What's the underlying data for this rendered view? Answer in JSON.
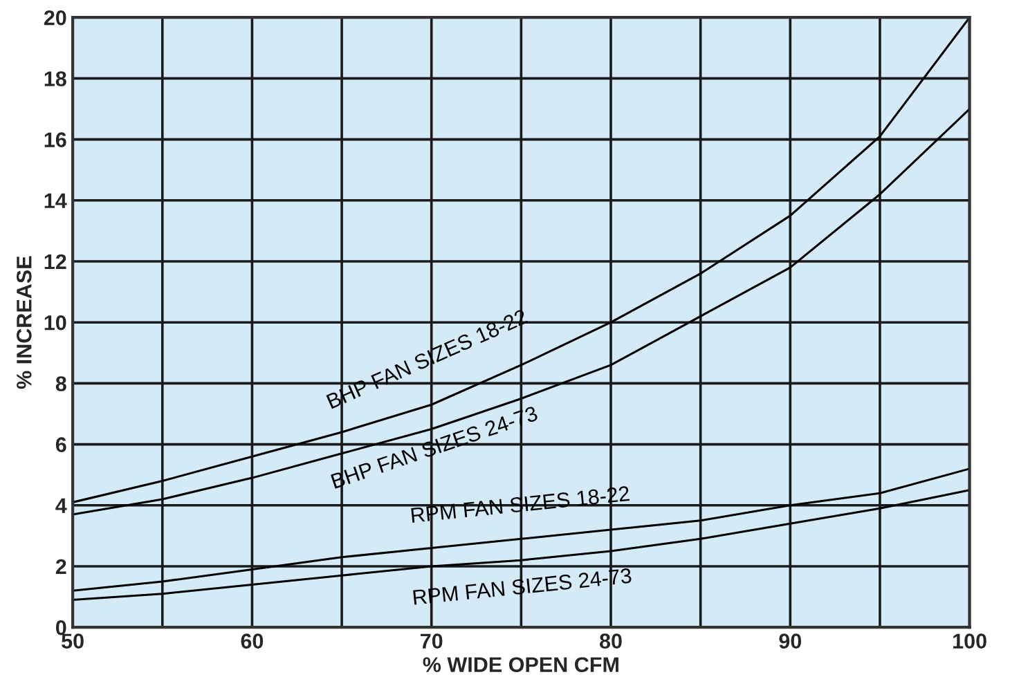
{
  "chart_data": {
    "type": "line",
    "xlabel": "% WIDE OPEN CFM",
    "ylabel": "% INCREASE",
    "x": [
      50,
      55,
      60,
      65,
      70,
      75,
      80,
      85,
      90,
      95,
      100
    ],
    "series": [
      {
        "name": "BHP FAN SIZES 18-22",
        "color": "#000000",
        "values": [
          4.1,
          4.8,
          5.6,
          6.4,
          7.3,
          8.6,
          10.0,
          11.6,
          13.5,
          16.1,
          20.0
        ]
      },
      {
        "name": "BHP FAN SIZES 24-73",
        "color": "#000000",
        "values": [
          3.7,
          4.2,
          4.9,
          5.7,
          6.5,
          7.5,
          8.6,
          10.2,
          11.8,
          14.2,
          17.0
        ]
      },
      {
        "name": "RPM FAN SIZES 18-22",
        "color": "#000000",
        "values": [
          1.2,
          1.5,
          1.9,
          2.3,
          2.6,
          2.9,
          3.2,
          3.5,
          4.0,
          4.4,
          5.2
        ]
      },
      {
        "name": "RPM FAN SIZES 24-73",
        "color": "#000000",
        "values": [
          0.9,
          1.1,
          1.4,
          1.7,
          2.0,
          2.2,
          2.5,
          2.9,
          3.4,
          3.9,
          4.5
        ]
      }
    ],
    "xlim": [
      50,
      100
    ],
    "ylim": [
      0,
      20
    ],
    "xticks": [
      {
        "value": 50,
        "label": "50"
      },
      {
        "value": 55,
        "label": null
      },
      {
        "value": 60,
        "label": "60"
      },
      {
        "value": 65,
        "label": null
      },
      {
        "value": 70,
        "label": "70"
      },
      {
        "value": 75,
        "label": null
      },
      {
        "value": 80,
        "label": "80"
      },
      {
        "value": 85,
        "label": null
      },
      {
        "value": 90,
        "label": "90"
      },
      {
        "value": 95,
        "label": null
      },
      {
        "value": 100,
        "label": "100"
      }
    ],
    "yticks": [
      0,
      2,
      4,
      6,
      8,
      10,
      12,
      14,
      16,
      18,
      20
    ],
    "grid": true,
    "legend": false,
    "marker": "none",
    "line_style": "solid"
  }
}
